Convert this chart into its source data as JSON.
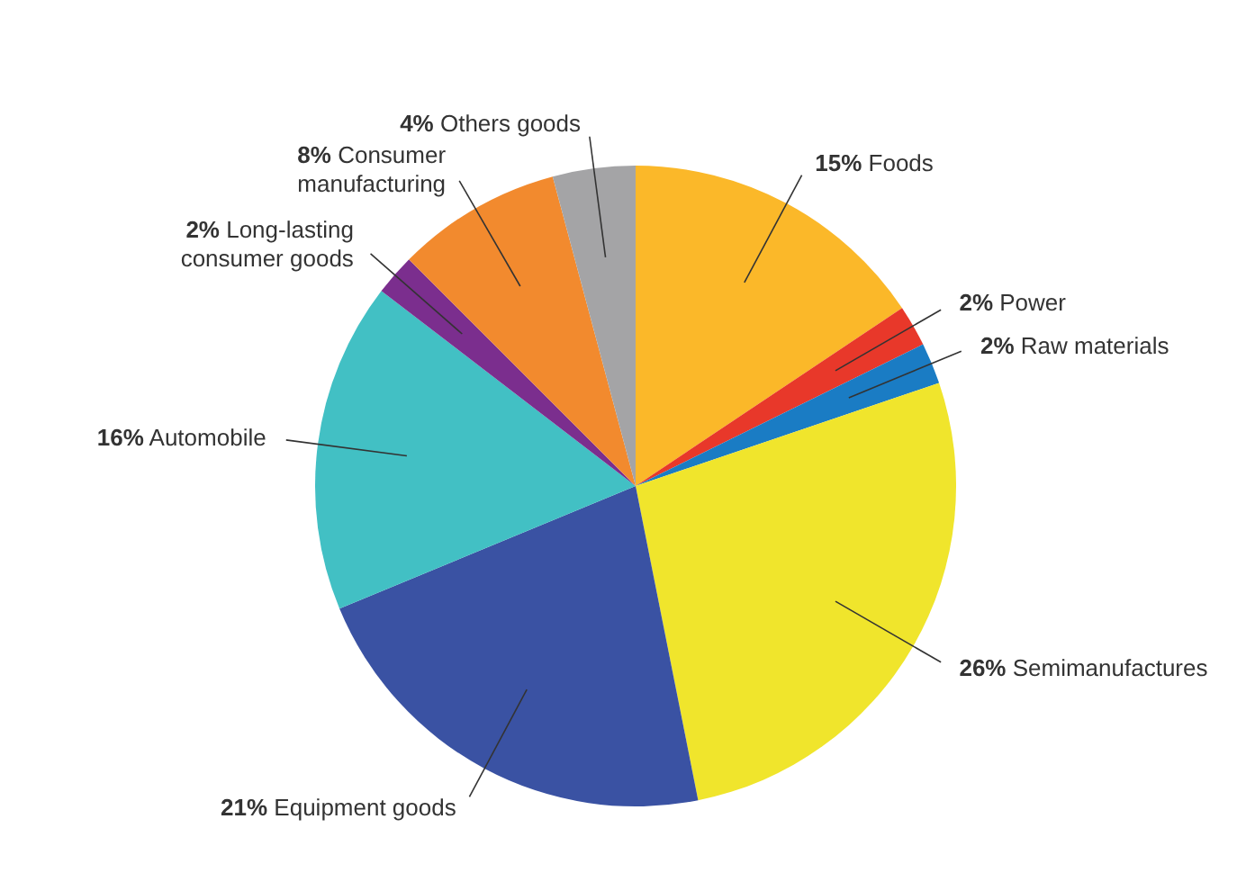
{
  "chart_data": {
    "type": "pie",
    "categories": [
      "Foods",
      "Power",
      "Raw materials",
      "Semimanufactures",
      "Equipment goods",
      "Automobile",
      "Long-lasting consumer goods",
      "Consumer manufacturing",
      "Others goods"
    ],
    "values": [
      15,
      2,
      2,
      26,
      21,
      16,
      2,
      8,
      4
    ],
    "value_labels": [
      "15%",
      "2%",
      "2%",
      "26%",
      "21%",
      "16%",
      "2%",
      "8%",
      "4%"
    ],
    "colors": [
      "#fbb829",
      "#e8382a",
      "#1a7cc4",
      "#f0e52c",
      "#3a52a3",
      "#42c0c4",
      "#7b2e8e",
      "#f28a2e",
      "#a4a4a6"
    ]
  }
}
